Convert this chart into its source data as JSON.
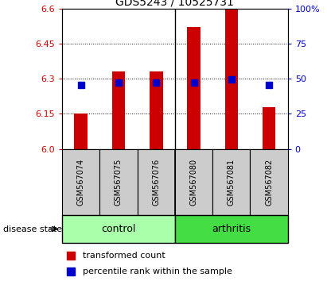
{
  "title": "GDS5243 / 10525731",
  "samples": [
    "GSM567074",
    "GSM567075",
    "GSM567076",
    "GSM567080",
    "GSM567081",
    "GSM567082"
  ],
  "red_values": [
    6.152,
    6.33,
    6.33,
    6.52,
    6.6,
    6.18
  ],
  "blue_values": [
    6.272,
    6.284,
    6.284,
    6.284,
    6.298,
    6.272
  ],
  "y_min": 6.0,
  "y_max": 6.6,
  "y_ticks_left": [
    6.0,
    6.15,
    6.3,
    6.45,
    6.6
  ],
  "y_ticks_right": [
    0,
    25,
    50,
    75,
    100
  ],
  "control_color": "#AAFFAA",
  "arthritis_color": "#44DD44",
  "control_label": "control",
  "arthritis_label": "arthritis",
  "disease_state_label": "disease state",
  "legend_red_label": "transformed count",
  "legend_blue_label": "percentile rank within the sample",
  "bar_color": "#CC0000",
  "dot_color": "#0000CC",
  "bar_width": 0.35,
  "dot_size": 30,
  "tick_color_left": "#CC0000",
  "tick_color_right": "#0000CC",
  "label_bg_color": "#CCCCCC",
  "fig_width": 4.11,
  "fig_height": 3.54,
  "dpi": 100
}
